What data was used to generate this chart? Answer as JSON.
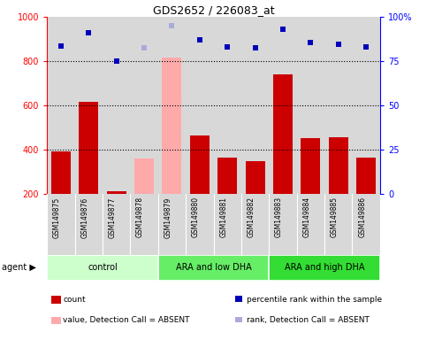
{
  "title": "GDS2652 / 226083_at",
  "samples": [
    "GSM149875",
    "GSM149876",
    "GSM149877",
    "GSM149878",
    "GSM149879",
    "GSM149880",
    "GSM149881",
    "GSM149882",
    "GSM149883",
    "GSM149884",
    "GSM149885",
    "GSM149886"
  ],
  "counts": [
    390,
    615,
    210,
    360,
    815,
    462,
    362,
    348,
    740,
    450,
    455,
    365
  ],
  "percentile_ranks": [
    83.5,
    91.0,
    75.0,
    82.5,
    95.0,
    87.0,
    83.0,
    82.8,
    93.0,
    85.8,
    84.8,
    83.0
  ],
  "absent_detection": [
    false,
    false,
    false,
    true,
    true,
    false,
    false,
    false,
    false,
    false,
    false,
    false
  ],
  "bar_color_normal": "#cc0000",
  "bar_color_absent": "#ffaaaa",
  "dot_color_normal": "#0000bb",
  "dot_color_absent": "#aaaadd",
  "ylim_left": [
    200,
    1000
  ],
  "ylim_right": [
    0,
    100
  ],
  "left_ticks": [
    200,
    400,
    600,
    800,
    1000
  ],
  "right_ticks": [
    0,
    25,
    50,
    75,
    100
  ],
  "groups": [
    {
      "label": "control",
      "start": 0,
      "end": 4,
      "color": "#ccffcc"
    },
    {
      "label": "ARA and low DHA",
      "start": 4,
      "end": 8,
      "color": "#66ee66"
    },
    {
      "label": "ARA and high DHA",
      "start": 8,
      "end": 12,
      "color": "#33dd33"
    }
  ],
  "background_color": "#d8d8d8",
  "legend_items": [
    {
      "label": "count",
      "color": "#cc0000",
      "type": "bar"
    },
    {
      "label": "percentile rank within the sample",
      "color": "#0000bb",
      "type": "dot"
    },
    {
      "label": "value, Detection Call = ABSENT",
      "color": "#ffaaaa",
      "type": "bar"
    },
    {
      "label": "rank, Detection Call = ABSENT",
      "color": "#aaaadd",
      "type": "dot"
    }
  ]
}
